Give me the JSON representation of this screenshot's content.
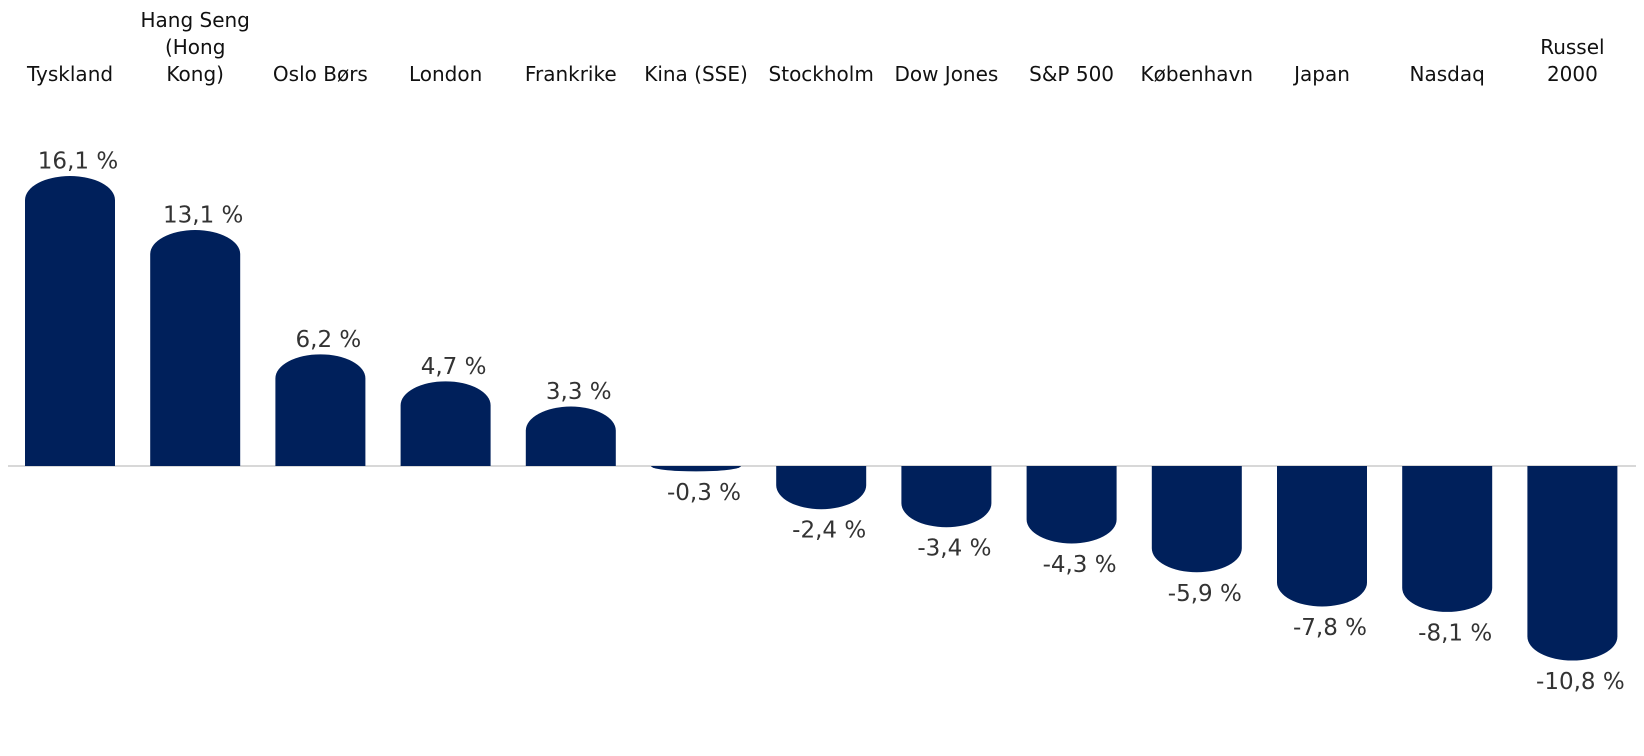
{
  "chart_data": {
    "type": "bar",
    "categories": [
      "Tyskland",
      "Hang Seng\n(Hong\nKong)",
      "Oslo Børs",
      "London",
      "Frankrike",
      "Kina (SSE)",
      "Stockholm",
      "Dow Jones",
      "S&P 500",
      "København",
      "Japan",
      "Nasdaq",
      "Russel\n2000"
    ],
    "values": [
      16.1,
      13.1,
      6.2,
      4.7,
      3.3,
      -0.3,
      -2.4,
      -3.4,
      -4.3,
      -5.9,
      -7.8,
      -8.1,
      -10.8
    ],
    "value_labels": [
      "16,1 %",
      "13,1 %",
      "6,2 %",
      "4,7 %",
      "3,3 %",
      "-0,3 %",
      "-2,4 %",
      "-3,4 %",
      "-4,3 %",
      "-5,9 %",
      "-7,8 %",
      "-8,1 %",
      "-10,8 %"
    ],
    "color": "#00205b"
  }
}
